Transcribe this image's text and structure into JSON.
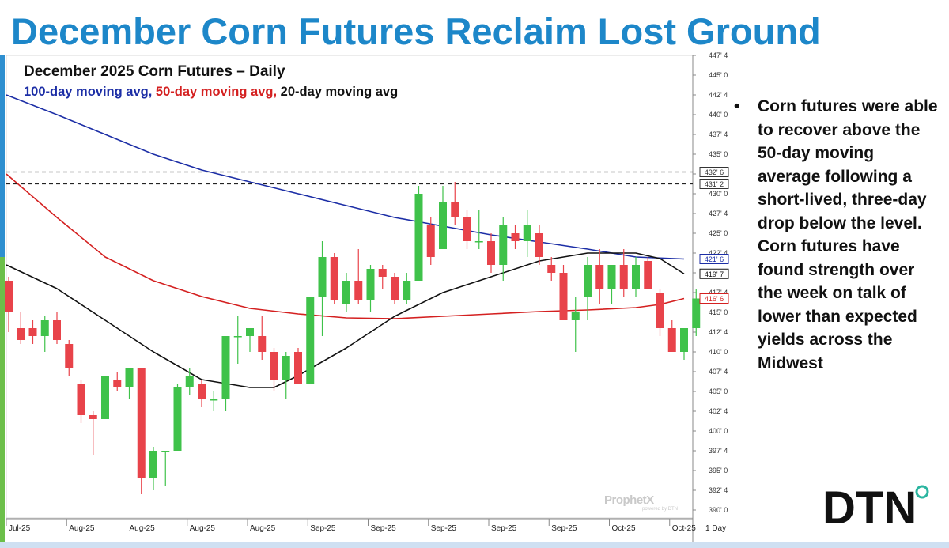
{
  "slide_title": "December Corn Futures Reclaim Lost Ground",
  "bullets": [
    "Corn futures were able to recover above the 50-day moving average following a short-lived, three-day drop below the level. Corn futures have found strength over the week on talk of lower than expected yields across the Midwest"
  ],
  "watermark": {
    "name": "ProphetX",
    "sub": "powered by DTN"
  },
  "logo_text": "DTN",
  "colors": {
    "title": "#1d87c9",
    "up": "#3fc24a",
    "down": "#e8434a",
    "ma100": "#1c2ea6",
    "ma50": "#d42020",
    "ma20": "#111111"
  },
  "chart_data": {
    "type": "candlestick",
    "title": "December 2025 Corn Futures – Daily",
    "legend": [
      {
        "name": "100-day moving avg",
        "color": "#1c2ea6"
      },
      {
        "name": "50-day moving avg",
        "color": "#d42020"
      },
      {
        "name": "20-day moving avg",
        "color": "#111111"
      }
    ],
    "ylim": [
      389,
      447.5
    ],
    "y_ticks": [
      "390' 0",
      "392' 4",
      "395' 0",
      "397' 4",
      "400' 0",
      "402' 4",
      "405' 0",
      "407' 4",
      "410' 0",
      "412' 4",
      "415' 0",
      "417' 4",
      "420' 0",
      "422' 4",
      "425' 0",
      "427' 4",
      "430' 0",
      "432' 4",
      "435' 0",
      "437' 4",
      "440' 0",
      "442' 4",
      "445' 0",
      "447' 4"
    ],
    "y_tick_values": [
      390,
      392.5,
      395,
      397.5,
      400,
      402.5,
      405,
      407.5,
      410,
      412.5,
      415,
      417.5,
      420,
      422.5,
      425,
      427.5,
      430,
      432.5,
      435,
      437.5,
      440,
      442.5,
      445,
      447.5
    ],
    "x_labels": [
      {
        "label": "Jul-25",
        "index": 0
      },
      {
        "label": "Aug-25",
        "index": 5
      },
      {
        "label": "Aug-25",
        "index": 10
      },
      {
        "label": "Aug-25",
        "index": 15
      },
      {
        "label": "Aug-25",
        "index": 20
      },
      {
        "label": "Sep-25",
        "index": 25
      },
      {
        "label": "Sep-25",
        "index": 30
      },
      {
        "label": "Sep-25",
        "index": 35
      },
      {
        "label": "Sep-25",
        "index": 40
      },
      {
        "label": "Sep-25",
        "index": 45
      },
      {
        "label": "Oct-25",
        "index": 50
      },
      {
        "label": "Oct-25",
        "index": 55
      }
    ],
    "period_label": "1 Day",
    "price_tags": [
      {
        "label": "432' 6",
        "value": 432.75,
        "color": "#333333",
        "dashed_line": true
      },
      {
        "label": "431' 2",
        "value": 431.25,
        "color": "#333333",
        "dashed_line": true
      },
      {
        "label": "421' 6",
        "value": 421.75,
        "color": "#1c2ea6",
        "dashed_line": false
      },
      {
        "label": "419' 7",
        "value": 419.875,
        "color": "#111111",
        "dashed_line": false
      },
      {
        "label": "416' 6",
        "value": 416.75,
        "color": "#d42020",
        "dashed_line": false
      }
    ],
    "candles": [
      {
        "o": 419,
        "h": 419.5,
        "l": 412.5,
        "c": 415
      },
      {
        "o": 413,
        "h": 415,
        "l": 411,
        "c": 411.5
      },
      {
        "o": 413,
        "h": 414,
        "l": 411,
        "c": 412
      },
      {
        "o": 412,
        "h": 414.5,
        "l": 410,
        "c": 414
      },
      {
        "o": 414,
        "h": 415,
        "l": 411,
        "c": 411.5
      },
      {
        "o": 411,
        "h": 411.5,
        "l": 407,
        "c": 408
      },
      {
        "o": 406,
        "h": 406.5,
        "l": 401,
        "c": 402
      },
      {
        "o": 402,
        "h": 402.5,
        "l": 397,
        "c": 401.5
      },
      {
        "o": 401.5,
        "h": 407,
        "l": 401.5,
        "c": 407
      },
      {
        "o": 406.5,
        "h": 407.5,
        "l": 405,
        "c": 405.5
      },
      {
        "o": 405.5,
        "h": 408,
        "l": 404,
        "c": 408
      },
      {
        "o": 408,
        "h": 408,
        "l": 392,
        "c": 394
      },
      {
        "o": 394,
        "h": 398,
        "l": 392.5,
        "c": 397.5
      },
      {
        "o": 397.5,
        "h": 397.5,
        "l": 393,
        "c": 397.5
      },
      {
        "o": 397.5,
        "h": 406,
        "l": 397.5,
        "c": 405.5
      },
      {
        "o": 405.5,
        "h": 408,
        "l": 404.5,
        "c": 407
      },
      {
        "o": 406,
        "h": 406.5,
        "l": 403,
        "c": 404
      },
      {
        "o": 404,
        "h": 405,
        "l": 402.5,
        "c": 404
      },
      {
        "o": 404,
        "h": 412,
        "l": 402.5,
        "c": 412
      },
      {
        "o": 412,
        "h": 414.5,
        "l": 408.5,
        "c": 412
      },
      {
        "o": 412,
        "h": 413,
        "l": 410,
        "c": 413
      },
      {
        "o": 412,
        "h": 414.5,
        "l": 409,
        "c": 410
      },
      {
        "o": 410,
        "h": 410.5,
        "l": 405,
        "c": 406.5
      },
      {
        "o": 406.5,
        "h": 410,
        "l": 404,
        "c": 409.5
      },
      {
        "o": 410,
        "h": 410.5,
        "l": 406,
        "c": 406
      },
      {
        "o": 406,
        "h": 417,
        "l": 406,
        "c": 417
      },
      {
        "o": 417,
        "h": 424,
        "l": 412,
        "c": 422
      },
      {
        "o": 422,
        "h": 422.5,
        "l": 416,
        "c": 416.5
      },
      {
        "o": 416,
        "h": 420,
        "l": 415,
        "c": 419
      },
      {
        "o": 419,
        "h": 423,
        "l": 416,
        "c": 416.5
      },
      {
        "o": 416.5,
        "h": 421,
        "l": 415,
        "c": 420.5
      },
      {
        "o": 420.5,
        "h": 421,
        "l": 418,
        "c": 419.5
      },
      {
        "o": 419.5,
        "h": 420,
        "l": 416,
        "c": 416.5
      },
      {
        "o": 416.5,
        "h": 420,
        "l": 416,
        "c": 419
      },
      {
        "o": 419,
        "h": 431,
        "l": 419,
        "c": 430
      },
      {
        "o": 426,
        "h": 427,
        "l": 421,
        "c": 422
      },
      {
        "o": 423,
        "h": 431,
        "l": 423,
        "c": 429
      },
      {
        "o": 429,
        "h": 431.5,
        "l": 426,
        "c": 427
      },
      {
        "o": 427,
        "h": 428,
        "l": 423,
        "c": 424
      },
      {
        "o": 424,
        "h": 428,
        "l": 423,
        "c": 424
      },
      {
        "o": 424,
        "h": 425,
        "l": 420,
        "c": 421
      },
      {
        "o": 421,
        "h": 427,
        "l": 419,
        "c": 426
      },
      {
        "o": 425,
        "h": 426,
        "l": 423,
        "c": 424
      },
      {
        "o": 424,
        "h": 428,
        "l": 422,
        "c": 426
      },
      {
        "o": 425,
        "h": 426,
        "l": 421,
        "c": 422
      },
      {
        "o": 421,
        "h": 422,
        "l": 419,
        "c": 420
      },
      {
        "o": 420,
        "h": 421,
        "l": 414,
        "c": 414
      },
      {
        "o": 414,
        "h": 417,
        "l": 410,
        "c": 415
      },
      {
        "o": 417,
        "h": 422,
        "l": 414,
        "c": 421
      },
      {
        "o": 421,
        "h": 423,
        "l": 416,
        "c": 418
      },
      {
        "o": 418,
        "h": 421,
        "l": 416,
        "c": 421
      },
      {
        "o": 421,
        "h": 423,
        "l": 417,
        "c": 418
      },
      {
        "o": 418,
        "h": 422,
        "l": 417,
        "c": 421
      },
      {
        "o": 421.5,
        "h": 422,
        "l": 418,
        "c": 418
      },
      {
        "o": 417.5,
        "h": 418,
        "l": 412,
        "c": 413
      },
      {
        "o": 413,
        "h": 414,
        "l": 410,
        "c": 410
      },
      {
        "o": 410,
        "h": 413,
        "l": 409,
        "c": 413
      },
      {
        "o": 413,
        "h": 418,
        "l": 412,
        "c": 416.75
      }
    ],
    "ma100": [
      442.5,
      440,
      437.5,
      435,
      433,
      431.5,
      430,
      428.5,
      427,
      425.9,
      424.8,
      423.9,
      423.0,
      422.0,
      421.75
    ],
    "ma50": [
      432.5,
      427,
      422,
      419,
      417,
      415.5,
      414.8,
      414.3,
      414.2,
      414.5,
      414.8,
      415.1,
      415.3,
      415.6,
      416.0,
      416.75
    ],
    "ma20": [
      421,
      418,
      414,
      410,
      406.5,
      405.5,
      405.5,
      407,
      410.5,
      414.5,
      417.5,
      419.5,
      421.5,
      422.5,
      422.5,
      421.8,
      419.875
    ],
    "ma100_x_index": [
      0,
      4,
      8,
      12,
      16,
      20,
      24,
      28,
      32,
      36,
      40,
      44,
      48,
      52,
      56
    ],
    "ma50_x_index": [
      0,
      4,
      8,
      12,
      16,
      20,
      24,
      28,
      32,
      36,
      40,
      44,
      48,
      52,
      54,
      56
    ],
    "ma20_x_index": [
      0,
      4,
      8,
      12,
      16,
      20,
      22,
      24,
      28,
      32,
      36,
      40,
      44,
      48,
      52,
      54,
      56
    ]
  }
}
